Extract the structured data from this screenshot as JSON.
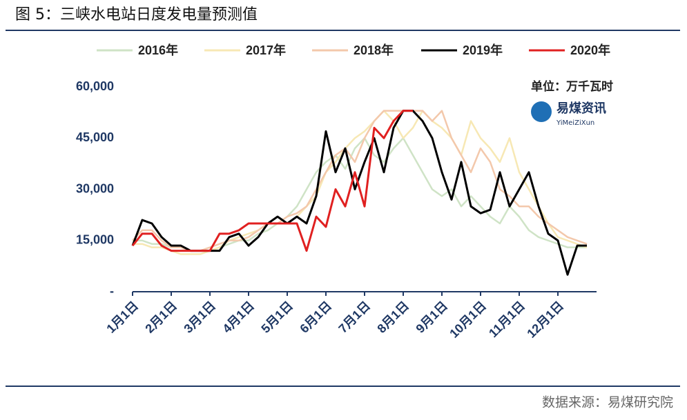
{
  "chart_data": {
    "type": "line",
    "title": "图 5：三峡水电站日度发电量预测值",
    "unit": "单位：万千瓦时",
    "logo": "易煤资讯",
    "logo_sub": "YiMeiZiXun",
    "source": "数据来源：易煤研究院",
    "categories": [
      "1月1日",
      null,
      null,
      null,
      "2月1日",
      null,
      null,
      null,
      "3月1日",
      null,
      null,
      null,
      "4月1日",
      null,
      null,
      null,
      "5月1日",
      null,
      null,
      null,
      "6月1日",
      null,
      null,
      null,
      "7月1日",
      null,
      null,
      null,
      "8月1日",
      null,
      null,
      null,
      "9月1日",
      null,
      null,
      null,
      "10月1日",
      null,
      null,
      null,
      "11月1日",
      null,
      null,
      null,
      "12月1日",
      null,
      null,
      null
    ],
    "ylim": [
      0,
      60000
    ],
    "yticks": [
      {
        "value": 0,
        "label": "-"
      },
      {
        "value": 15000,
        "label": "15,000"
      },
      {
        "value": 30000,
        "label": "30,000"
      },
      {
        "value": 45000,
        "label": "45,000"
      },
      {
        "value": 60000,
        "label": "60,000"
      }
    ],
    "series": [
      {
        "name": "2016年",
        "color": "#cfe3c6",
        "values": [
          15000,
          15000,
          14000,
          14000,
          13000,
          13000,
          12000,
          12000,
          12000,
          13000,
          14000,
          15000,
          15000,
          17000,
          18000,
          20000,
          22000,
          25000,
          30000,
          35000,
          38000,
          40000,
          36000,
          42000,
          45000,
          40000,
          38000,
          42000,
          45000,
          40000,
          35000,
          30000,
          28000,
          30000,
          25000,
          28000,
          25000,
          22000,
          20000,
          25000,
          22000,
          18000,
          16000,
          15000,
          14000,
          13000,
          13000,
          13000
        ]
      },
      {
        "name": "2017年",
        "color": "#f7e8b4",
        "values": [
          14000,
          14000,
          13000,
          13000,
          12000,
          11000,
          11000,
          11000,
          12000,
          13000,
          15000,
          16000,
          17000,
          18000,
          20000,
          22000,
          20000,
          22000,
          25000,
          28000,
          35000,
          38000,
          42000,
          45000,
          47000,
          50000,
          53000,
          50000,
          45000,
          48000,
          53000,
          50000,
          48000,
          45000,
          40000,
          50000,
          45000,
          42000,
          38000,
          45000,
          35000,
          30000,
          25000,
          20000,
          16000,
          15000,
          14000,
          13000
        ]
      },
      {
        "name": "2018年",
        "color": "#f3c8ab",
        "values": [
          15000,
          18000,
          18000,
          15000,
          13000,
          13000,
          12000,
          12000,
          13000,
          14000,
          15000,
          15000,
          16000,
          18000,
          20000,
          20000,
          22000,
          23000,
          25000,
          30000,
          35000,
          40000,
          42000,
          38000,
          45000,
          50000,
          53000,
          53000,
          53000,
          53000,
          53000,
          50000,
          53000,
          45000,
          40000,
          35000,
          42000,
          38000,
          30000,
          28000,
          25000,
          25000,
          22000,
          20000,
          18000,
          16000,
          15000,
          14000
        ]
      },
      {
        "name": "2019年",
        "color": "#000000",
        "values": [
          13500,
          21000,
          20000,
          16000,
          13500,
          13500,
          12000,
          12000,
          12000,
          12000,
          16000,
          17000,
          13500,
          16000,
          20000,
          22000,
          20000,
          22000,
          20000,
          28000,
          47000,
          35000,
          42000,
          30000,
          38000,
          45000,
          35000,
          48000,
          53000,
          53000,
          50000,
          45000,
          35000,
          27000,
          38000,
          25000,
          23000,
          24000,
          35000,
          25000,
          30000,
          35000,
          25000,
          17000,
          15000,
          5000,
          13500,
          13500
        ]
      },
      {
        "name": "2020年",
        "color": "#e02020",
        "values": [
          13500,
          17000,
          17000,
          13500,
          12000,
          12000,
          12000,
          12000,
          12000,
          17000,
          17000,
          18000,
          20000,
          20000,
          20000,
          20000,
          20000,
          20000,
          12000,
          22000,
          19000,
          30000,
          25000,
          35000,
          25000,
          48000,
          45000,
          50000,
          53000,
          53000,
          null,
          null,
          null,
          null,
          null,
          null,
          null,
          null,
          null,
          null,
          null,
          null,
          null,
          null,
          null,
          null,
          null,
          null
        ]
      }
    ]
  }
}
